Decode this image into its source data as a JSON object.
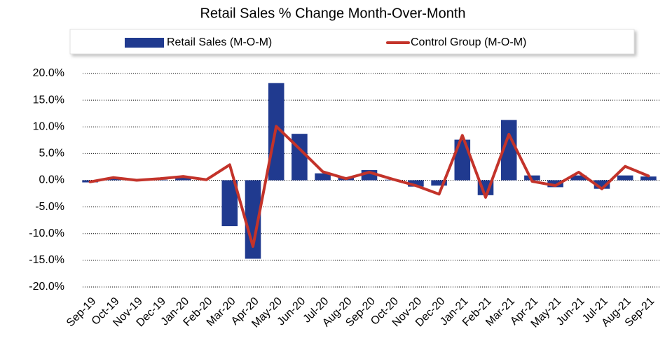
{
  "chart_data": {
    "type": "bar_line",
    "title": "Retail Sales % Change Month-Over-Month",
    "categories": [
      "Sep-19",
      "Oct-19",
      "Nov-19",
      "Dec-19",
      "Jan-20",
      "Feb-20",
      "Mar-20",
      "Apr-20",
      "May-20",
      "Jun-20",
      "Jul-20",
      "Aug-20",
      "Sep-20",
      "Oct-20",
      "Nov-20",
      "Dec-20",
      "Jan-21",
      "Feb-21",
      "Mar-21",
      "Apr-21",
      "May-21",
      "Jun-21",
      "Jul-21",
      "Aug-21",
      "Sep-21"
    ],
    "series": [
      {
        "name": "Retail Sales (M-O-M)",
        "type": "bar",
        "color": "#203a8f",
        "values": [
          -0.4,
          0.3,
          0.1,
          0.1,
          0.7,
          0.0,
          -8.6,
          -14.7,
          18.2,
          8.7,
          1.3,
          0.6,
          1.9,
          0.1,
          -1.2,
          -1.0,
          7.6,
          -2.8,
          11.3,
          0.9,
          -1.3,
          0.9,
          -1.6,
          0.9,
          0.7
        ]
      },
      {
        "name": "Control Group (M-O-M)",
        "type": "line",
        "color": "#c3332a",
        "values": [
          -0.3,
          0.5,
          0.0,
          0.3,
          0.7,
          0.1,
          2.9,
          -12.4,
          10.1,
          5.9,
          1.6,
          0.3,
          1.5,
          0.2,
          -1.0,
          -2.6,
          8.4,
          -3.2,
          8.6,
          -0.2,
          -1.0,
          1.5,
          -1.6,
          2.6,
          0.8
        ]
      }
    ],
    "ylim": [
      -20,
      20
    ],
    "yticks": [
      {
        "value": -20,
        "label": "-20.0%"
      },
      {
        "value": -15,
        "label": "-15.0%"
      },
      {
        "value": -10,
        "label": "-10.0%"
      },
      {
        "value": -5,
        "label": "-5.0%"
      },
      {
        "value": 0,
        "label": "0.0%"
      },
      {
        "value": 5,
        "label": "5.0%"
      },
      {
        "value": 10,
        "label": "10.0%"
      },
      {
        "value": 15,
        "label": "15.0%"
      },
      {
        "value": 20,
        "label": "20.0%"
      }
    ],
    "grid": true,
    "legend": "top"
  }
}
